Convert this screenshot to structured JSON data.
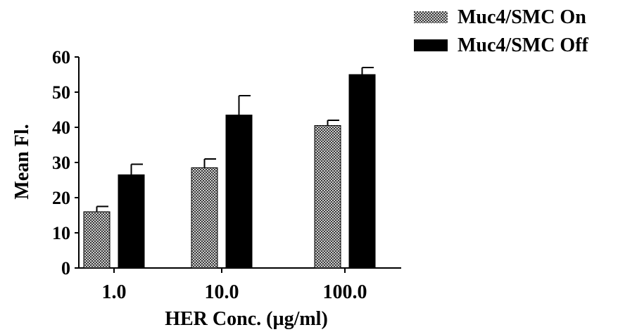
{
  "chart_data": {
    "type": "bar",
    "title": "",
    "xlabel": "HER Conc. (µg/ml)",
    "ylabel": "Mean Fl.",
    "categories": [
      "1.0",
      "10.0",
      "100.0"
    ],
    "ylim": [
      0,
      60
    ],
    "yticks": [
      0,
      10,
      20,
      30,
      40,
      50,
      60
    ],
    "grid": false,
    "legend_position": "top-right",
    "series": [
      {
        "name": "Muc4/SMC On",
        "values": [
          16,
          28.5,
          40.5
        ],
        "errors": [
          1.5,
          2.5,
          1.5
        ],
        "pattern": "stippled"
      },
      {
        "name": "Muc4/SMC Off",
        "values": [
          26.5,
          43.5,
          55
        ],
        "errors": [
          3,
          5.5,
          2
        ],
        "pattern": "solid"
      }
    ],
    "colors": {
      "bar_fill": "#000000",
      "stipple_light": "#cfcfcf",
      "stipple_dark": "#3a3a3a"
    }
  }
}
